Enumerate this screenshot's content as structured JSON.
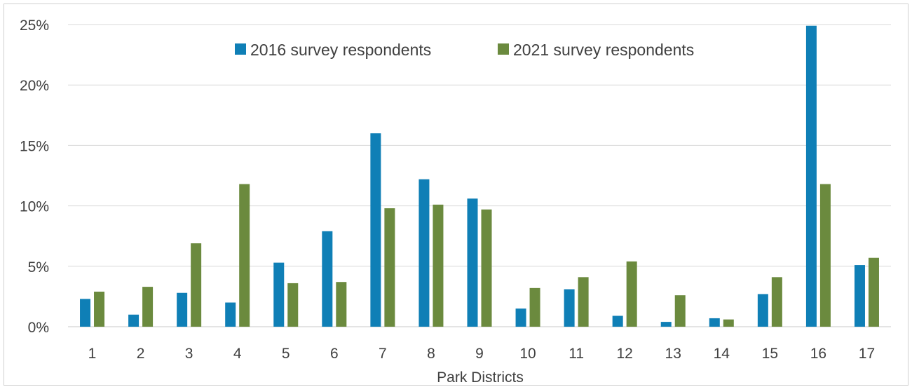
{
  "chart_data": {
    "type": "bar",
    "xlabel": "Park Districts",
    "ylabel": "",
    "title": "",
    "categories": [
      "1",
      "2",
      "3",
      "4",
      "5",
      "6",
      "7",
      "8",
      "9",
      "10",
      "11",
      "12",
      "13",
      "14",
      "15",
      "16",
      "17"
    ],
    "series": [
      {
        "name": "2016 survey respondents",
        "color": "#0f7fb6",
        "values": [
          2.3,
          1.0,
          2.8,
          2.0,
          5.3,
          7.9,
          16.0,
          12.2,
          10.6,
          1.5,
          3.1,
          0.9,
          0.4,
          0.7,
          2.7,
          24.9,
          5.1
        ]
      },
      {
        "name": "2021 survey respondents",
        "color": "#6b8a3e",
        "values": [
          2.9,
          3.3,
          6.9,
          11.8,
          3.6,
          3.7,
          9.8,
          10.1,
          9.7,
          3.2,
          4.1,
          5.4,
          2.6,
          0.6,
          4.1,
          11.8,
          5.7
        ]
      }
    ],
    "ylim": [
      0,
      25
    ],
    "yticks": [
      0,
      5,
      10,
      15,
      20,
      25
    ],
    "ytick_labels": [
      "0%",
      "5%",
      "10%",
      "15%",
      "20%",
      "25%"
    ],
    "grid": true,
    "legend_position": "top-center"
  }
}
